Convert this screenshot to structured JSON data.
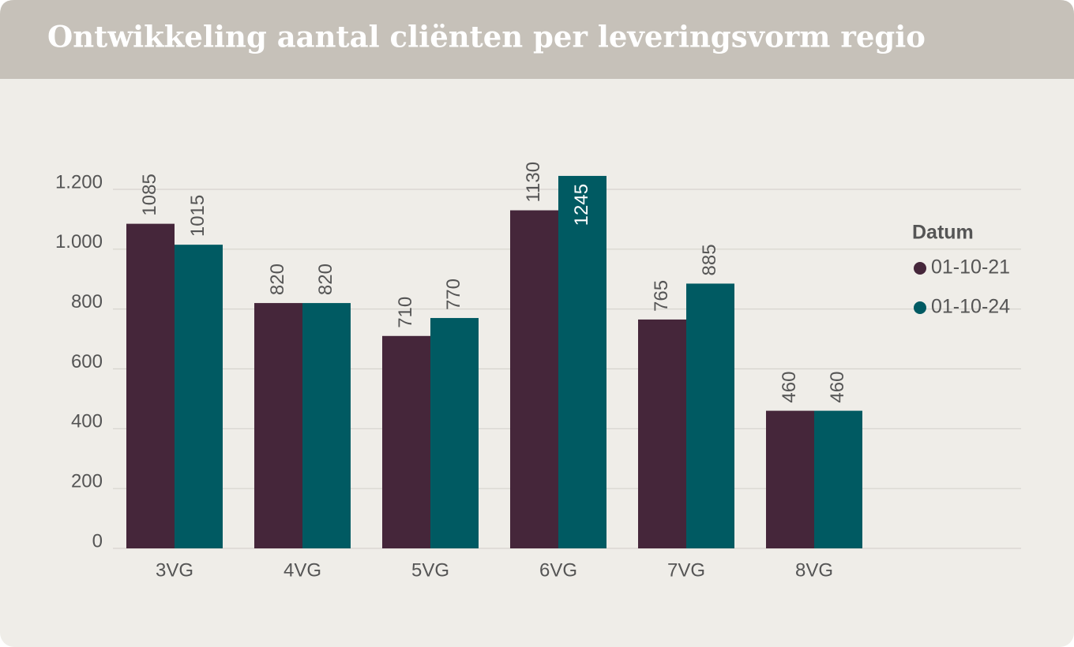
{
  "chart_data": {
    "type": "bar",
    "title": "Ontwikkeling aantal cliënten per leveringsvorm regio",
    "categories": [
      "3VG",
      "4VG",
      "5VG",
      "6VG",
      "7VG",
      "8VG"
    ],
    "series": [
      {
        "name": "01-10-21",
        "color": "#45263a",
        "values": [
          1085,
          820,
          710,
          1130,
          765,
          460
        ]
      },
      {
        "name": "01-10-24",
        "color": "#005a62",
        "values": [
          1015,
          820,
          770,
          1245,
          885,
          460
        ]
      }
    ],
    "ylim": [
      0,
      1200
    ],
    "yticks": [
      0,
      200,
      400,
      600,
      800,
      {
        "value": 1000,
        "label": "1.000"
      },
      {
        "value": 1200,
        "label": "1.200"
      }
    ],
    "grid": true,
    "legend_title": "Datum",
    "legend_position": "right"
  }
}
